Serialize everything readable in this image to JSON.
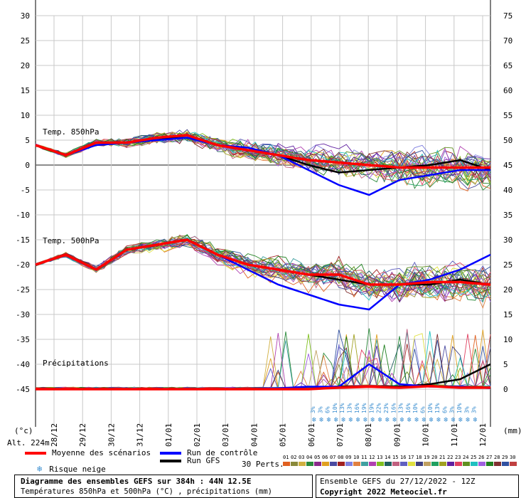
{
  "chart_data": {
    "type": "line",
    "x_dates": [
      "28/12",
      "29/12",
      "30/12",
      "31/12",
      "01/01",
      "02/01",
      "03/01",
      "04/01",
      "05/01",
      "06/01",
      "07/01",
      "08/01",
      "09/01",
      "10/01",
      "11/01",
      "12/01"
    ],
    "left_axis_ticks": [
      30,
      25,
      20,
      15,
      10,
      5,
      0,
      -5,
      -10,
      -15,
      -20,
      -25,
      -30,
      -35,
      -40,
      -45
    ],
    "right_axis_ticks": [
      75,
      70,
      65,
      60,
      55,
      50,
      45,
      40,
      35,
      30,
      25,
      20,
      15,
      10,
      5,
      0
    ],
    "left_unit": "(°c)",
    "right_unit": "(mm)",
    "altitude": "Alt. 224m",
    "panels": {
      "t850": {
        "label": "Temp. 850hPa",
        "mean": [
          4,
          2,
          4.5,
          4.5,
          5.5,
          6,
          4,
          3,
          2,
          1,
          0.5,
          0,
          -0.5,
          -0.5,
          -0.5,
          -0.5
        ],
        "control": [
          4,
          2,
          4,
          4.5,
          5,
          5.5,
          4,
          3.5,
          2,
          -1,
          -4,
          -6,
          -3,
          -2,
          -1,
          -1
        ],
        "gfs": [
          4,
          2,
          4.5,
          4.5,
          5,
          6,
          4,
          3,
          2,
          0,
          -1.5,
          -1,
          -0.5,
          0,
          1,
          -1
        ]
      },
      "t500": {
        "label": "Temp. 500hPa",
        "mean": [
          -20,
          -18,
          -21,
          -17,
          -16,
          -15,
          -18,
          -20,
          -21,
          -22,
          -22,
          -24,
          -24,
          -23.5,
          -23.5,
          -24
        ],
        "control": [
          -20,
          -18,
          -21,
          -17,
          -16,
          -15,
          -18,
          -21,
          -24,
          -26,
          -28,
          -29,
          -24,
          -23,
          -21,
          -18
        ],
        "gfs": [
          -20,
          -18,
          -21,
          -17,
          -16,
          -15,
          -18,
          -20,
          -21,
          -22,
          -23,
          -24,
          -24,
          -24,
          -23,
          -24
        ]
      },
      "precip": {
        "label": "Précipitations",
        "mean": [
          0,
          0,
          0,
          0,
          0,
          0,
          0,
          0,
          0,
          0,
          0.3,
          0.5,
          0.3,
          0.6,
          0.3,
          0.3
        ],
        "control": [
          0,
          0,
          0,
          0,
          0,
          0,
          0,
          0,
          0.2,
          0.5,
          0.5,
          5,
          1,
          0.5,
          0.5,
          0.2
        ],
        "gfs": [
          0,
          0,
          0,
          0,
          0,
          0,
          0,
          0,
          0,
          0,
          0.5,
          0.5,
          0.5,
          1,
          2,
          5
        ]
      }
    },
    "snow_risk": [
      "3%",
      "3%",
      "6%",
      "10%",
      "13%",
      "13%",
      "16%",
      "19%",
      "19%",
      "22%",
      "23%",
      "16%",
      "13%",
      "16%",
      "10%",
      "6%",
      "10%",
      "13%",
      "6%",
      "3%",
      "10%",
      "3%",
      "3%"
    ],
    "perturbation_numbers": [
      "01",
      "02",
      "03",
      "04",
      "05",
      "06",
      "07",
      "08",
      "09",
      "10",
      "11",
      "12",
      "13",
      "14",
      "15",
      "16",
      "17",
      "18",
      "19",
      "20",
      "21",
      "22",
      "23",
      "24",
      "25",
      "26",
      "27",
      "28",
      "29",
      "30"
    ],
    "perturbation_colors": [
      "#e06020",
      "#8a8a3a",
      "#d0b040",
      "#2a8a3a",
      "#8a2a8a",
      "#e0a020",
      "#4a4aa0",
      "#a02020",
      "#8080e0",
      "#e08040",
      "#40a0a0",
      "#b040b0",
      "#80c020",
      "#206060",
      "#c06080",
      "#6060c0",
      "#e0e040",
      "#404080",
      "#c0a060",
      "#20a060",
      "#a0a020",
      "#6020a0",
      "#e04060",
      "#609020",
      "#20c0c0",
      "#a060e0",
      "#208020",
      "#803030",
      "#3050a0",
      "#c04040"
    ]
  },
  "legend": {
    "mean_label": "Moyenne des scénarios",
    "control_label": "Run de contrôle",
    "gfs_label": "Run GFS",
    "snow_label": "Risque neige",
    "perts_label": "30 Perts.",
    "mean_color": "#ff0000",
    "control_color": "#0000ff",
    "gfs_color": "#000000"
  },
  "footer": {
    "title": "Diagramme des ensembles GEFS sur 384h : 44N 12.5E",
    "subtitle": "Températures 850hPa et 500hPa (°C) , précipitations (mm)",
    "run": "Ensemble GEFS du 27/12/2022 - 12Z",
    "copyright": "Copyright 2022 Meteociel.fr"
  }
}
